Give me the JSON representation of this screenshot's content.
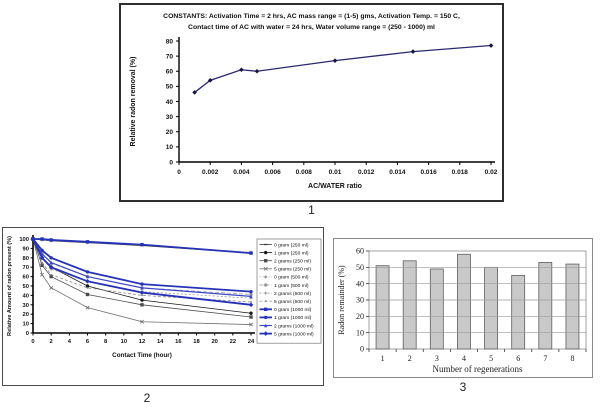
{
  "figures": {
    "fig1": {
      "caption": "1",
      "header_line1": "CONSTANTS: Activation Time = 2 hrs,  AC mass range = (1-5) gms, Activation Temp. = 150 C,",
      "header_line2": "Contact time of  AC with water = 24 hrs, Water volume range = (250 - 1000) ml"
    },
    "fig2": {
      "caption": "2"
    },
    "fig3": {
      "caption": "3"
    }
  },
  "chart_data": [
    {
      "id": "radon-removal-vs-ac-water-ratio",
      "type": "line",
      "title": "",
      "xlabel": "AC/WATER ratio",
      "ylabel": "Relative radon removal (%)",
      "xlim": [
        0,
        0.02
      ],
      "ylim": [
        0,
        80
      ],
      "xticks": [
        0,
        0.002,
        0.004,
        0.006,
        0.008,
        0.01,
        0.012,
        0.014,
        0.016,
        0.018,
        0.02
      ],
      "xtick_labels": [
        "0",
        "0.002",
        "0.004",
        "0.006",
        "0.008",
        "0.01",
        "0.012",
        "0.014",
        "0.016",
        "0.018",
        "0.02"
      ],
      "yticks": [
        0,
        10,
        20,
        30,
        40,
        50,
        60,
        70,
        80
      ],
      "grid": false,
      "line_color": "#2a2a72",
      "marker_color": "#14143c",
      "x": [
        0.001,
        0.002,
        0.004,
        0.005,
        0.01,
        0.015,
        0.02
      ],
      "y": [
        46,
        54,
        61,
        60,
        67,
        73,
        77
      ]
    },
    {
      "id": "radon-present-vs-contact-time",
      "type": "line",
      "title": "",
      "xlabel": "Contact Time (hour)",
      "ylabel": "Relative Amount of radon present (%)",
      "xlim": [
        0,
        24
      ],
      "ylim": [
        0,
        100
      ],
      "xticks": [
        0,
        2,
        4,
        6,
        8,
        10,
        12,
        14,
        16,
        18,
        20,
        22,
        24
      ],
      "yticks": [
        0,
        10,
        20,
        30,
        40,
        50,
        60,
        70,
        80,
        90,
        100
      ],
      "grid": false,
      "legend_position": "right",
      "x": [
        0,
        1,
        2,
        6,
        12,
        24
      ],
      "series": [
        {
          "name": "0 gram (250 ml)",
          "color": "#3a3a3a",
          "width": 0.8,
          "dash": "",
          "marker": "tick",
          "values": [
            100,
            99,
            98,
            96,
            93,
            85
          ]
        },
        {
          "name": "1 gram  (250 ml)",
          "color": "#1a1a1a",
          "width": 0.8,
          "dash": "",
          "marker": "circle-filled",
          "values": [
            100,
            80,
            70,
            50,
            35,
            21
          ]
        },
        {
          "name": "2 grams  (250 ml)",
          "color": "#4d4d4d",
          "width": 0.8,
          "dash": "",
          "marker": "square",
          "values": [
            100,
            72,
            60,
            41,
            30,
            17
          ]
        },
        {
          "name": "5 grams  (250 ml)",
          "color": "#707070",
          "width": 0.8,
          "dash": "",
          "marker": "x",
          "values": [
            100,
            62,
            48,
            27,
            12,
            9
          ]
        },
        {
          "name": "0 gram  (500 ml)",
          "color": "#8a8a8a",
          "width": 0.7,
          "dash": "1,2",
          "marker": "asterisk",
          "values": [
            100,
            99,
            98,
            96,
            94,
            86
          ]
        },
        {
          "name": "1 gram (500 ml)",
          "color": "#9a9a9a",
          "width": 0.7,
          "dash": "4,2",
          "marker": "circle-filled",
          "values": [
            100,
            85,
            74,
            60,
            48,
            41
          ]
        },
        {
          "name": "2 grams (500 ml)",
          "color": "#8f8f8f",
          "width": 0.7,
          "dash": "2,2",
          "marker": "plus",
          "values": [
            100,
            80,
            68,
            55,
            44,
            37
          ]
        },
        {
          "name": "5 grams (500 ml)",
          "color": "#7d7d7d",
          "width": 0.7,
          "dash": "3,2",
          "marker": "dot",
          "values": [
            100,
            75,
            62,
            48,
            40,
            33
          ]
        },
        {
          "name": "0 gram (1000 ml)",
          "color": "#2633b8",
          "width": 1.8,
          "dash": "",
          "marker": "square",
          "values": [
            100,
            100,
            99,
            97,
            94,
            85
          ]
        },
        {
          "name": "1 gram  (1000 ml)",
          "color": "#2633b8",
          "width": 1.8,
          "dash": "",
          "marker": "circle-filled",
          "values": [
            100,
            88,
            80,
            65,
            52,
            44
          ]
        },
        {
          "name": "2 grams  (1000 ml)",
          "color": "#3b49c9",
          "width": 1.2,
          "dash": "",
          "marker": "triangle",
          "values": [
            100,
            84,
            75,
            60,
            48,
            39
          ]
        },
        {
          "name": "5 grams  (1000 ml)",
          "color": "#2633b8",
          "width": 1.8,
          "dash": "",
          "marker": "diamond",
          "values": [
            100,
            80,
            70,
            55,
            43,
            30
          ]
        }
      ]
    },
    {
      "id": "radon-remainder-vs-regenerations",
      "type": "bar",
      "title": "",
      "xlabel": "Number of regenerations",
      "ylabel": "Radon remainder (%)",
      "categories": [
        "1",
        "2",
        "3",
        "4",
        "5",
        "6",
        "7",
        "8"
      ],
      "values": [
        51,
        54,
        49,
        58,
        50,
        45,
        53,
        52
      ],
      "ylim": [
        0,
        60
      ],
      "yticks": [
        0,
        10,
        20,
        30,
        40,
        50,
        60
      ],
      "grid": true,
      "bar_color": "#c9c9c9",
      "bar_border": "#5e5e5e",
      "grid_color": "#9a9a9a"
    }
  ]
}
